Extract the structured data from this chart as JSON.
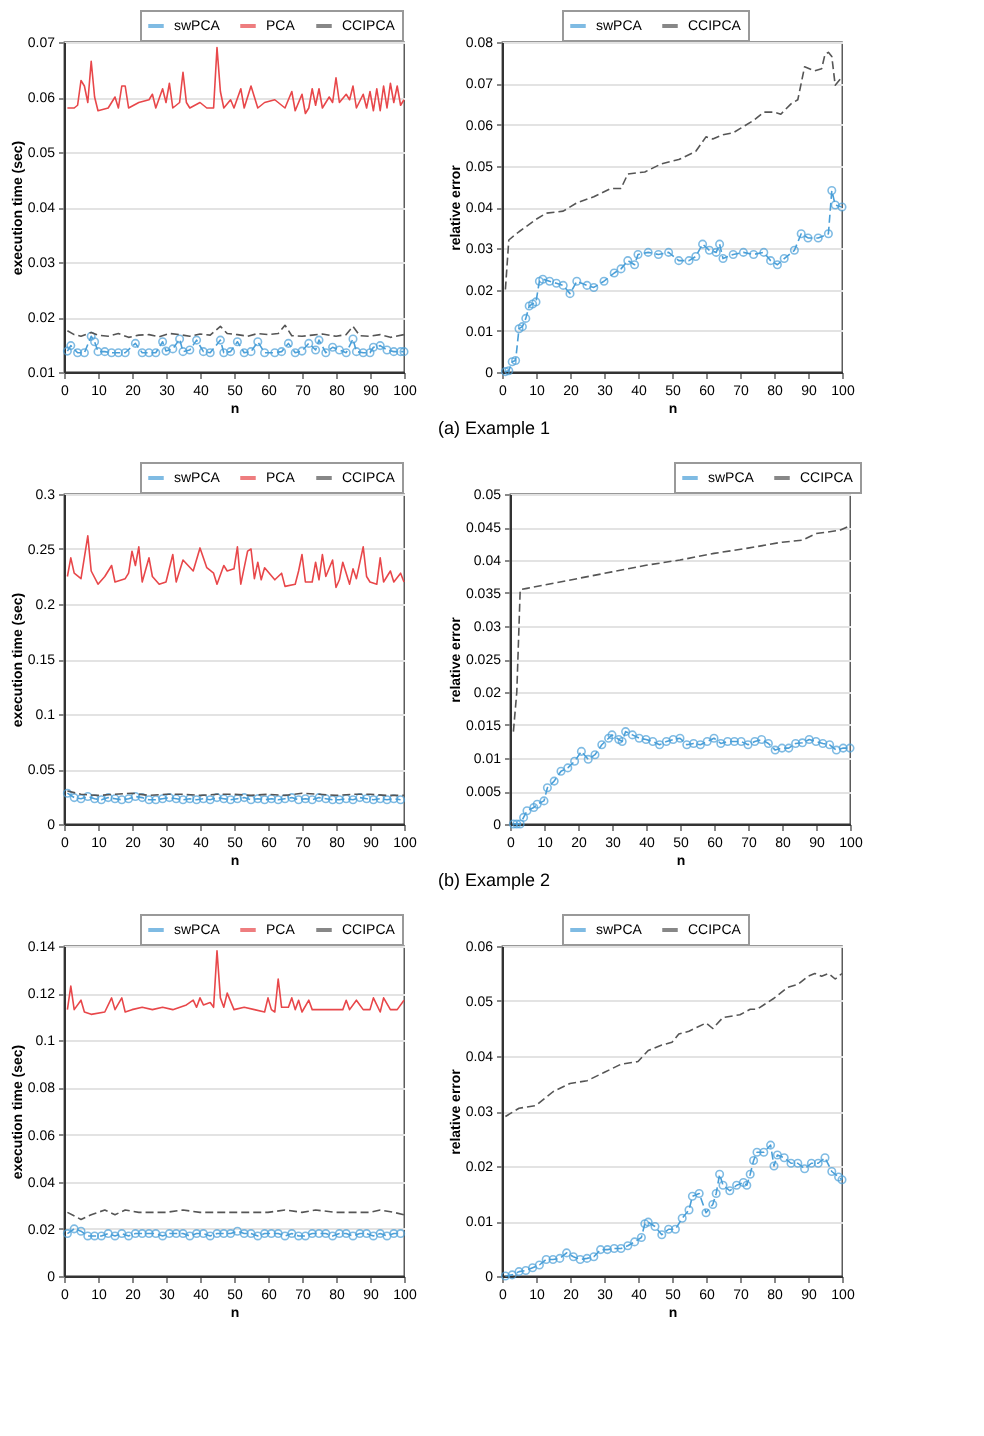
{
  "chart_data": [
    {
      "type": "line",
      "xlabel": "n",
      "ylabel": "execution time (sec)",
      "xlim": [
        0,
        100
      ],
      "xticks": [
        0,
        10,
        20,
        30,
        40,
        50,
        60,
        70,
        80,
        90,
        100
      ],
      "ylim": [
        0.01,
        0.07
      ],
      "yticks": [
        0.01,
        0.02,
        0.03,
        0.04,
        0.05,
        0.06,
        0.07
      ],
      "grid": "y",
      "legend": "top right",
      "annotations": [
        "(a) Example 1"
      ],
      "series": [
        {
          "name": "swPCA",
          "color": "#4a9fd8",
          "marker": "circle",
          "line_style": "dashed",
          "x": [
            1,
            2,
            4,
            6,
            8,
            9,
            10,
            12,
            14,
            16,
            18,
            21,
            23,
            25,
            27,
            29,
            30,
            32,
            34,
            35,
            37,
            39,
            41,
            43,
            46,
            47,
            49,
            51,
            53,
            55,
            57,
            59,
            62,
            64,
            66,
            68,
            70,
            72,
            74,
            75,
            77,
            79,
            81,
            83,
            85,
            86,
            88,
            90,
            91,
            93,
            95,
            97,
            99,
            100
          ],
          "values": [
            0.0138,
            0.0148,
            0.0135,
            0.0135,
            0.0165,
            0.0155,
            0.0137,
            0.0137,
            0.0135,
            0.0135,
            0.0135,
            0.0152,
            0.0135,
            0.0135,
            0.0135,
            0.0155,
            0.0138,
            0.0142,
            0.016,
            0.0137,
            0.014,
            0.0158,
            0.0137,
            0.0135,
            0.0158,
            0.0135,
            0.0137,
            0.0155,
            0.0135,
            0.0137,
            0.0155,
            0.0135,
            0.0135,
            0.0137,
            0.0152,
            0.0135,
            0.0138,
            0.0152,
            0.014,
            0.0158,
            0.0135,
            0.0145,
            0.014,
            0.0135,
            0.016,
            0.0137,
            0.0135,
            0.0135,
            0.0145,
            0.0148,
            0.014,
            0.0137,
            0.0137,
            0.0137
          ]
        },
        {
          "name": "PCA",
          "color": "#e8474a",
          "marker": "none",
          "line_style": "solid",
          "x": [
            1,
            3,
            4,
            5,
            6,
            7,
            8,
            9,
            10,
            13,
            15,
            16,
            17,
            18,
            19,
            22,
            25,
            26,
            27,
            29,
            30,
            31,
            32,
            34,
            35,
            36,
            37,
            40,
            42,
            44,
            45,
            46,
            47,
            49,
            50,
            52,
            53,
            55,
            56,
            57,
            59,
            62,
            65,
            67,
            68,
            70,
            71,
            72,
            73,
            74,
            75,
            76,
            78,
            79,
            80,
            81,
            83,
            84,
            85,
            86,
            88,
            89,
            90,
            91,
            92,
            93,
            94,
            95,
            96,
            97,
            98,
            99,
            100
          ],
          "values": [
            0.058,
            0.058,
            0.0585,
            0.063,
            0.062,
            0.059,
            0.0665,
            0.06,
            0.0575,
            0.058,
            0.06,
            0.058,
            0.062,
            0.062,
            0.058,
            0.059,
            0.0595,
            0.0605,
            0.058,
            0.0615,
            0.059,
            0.0625,
            0.058,
            0.059,
            0.0645,
            0.059,
            0.058,
            0.059,
            0.058,
            0.058,
            0.069,
            0.061,
            0.058,
            0.0595,
            0.058,
            0.0615,
            0.058,
            0.062,
            0.06,
            0.058,
            0.059,
            0.0595,
            0.058,
            0.061,
            0.0575,
            0.0605,
            0.057,
            0.058,
            0.0615,
            0.0585,
            0.0615,
            0.058,
            0.06,
            0.059,
            0.0635,
            0.059,
            0.0605,
            0.0595,
            0.062,
            0.058,
            0.0605,
            0.058,
            0.061,
            0.0575,
            0.0615,
            0.0575,
            0.062,
            0.058,
            0.0625,
            0.059,
            0.062,
            0.0585,
            0.0595
          ]
        },
        {
          "name": "CCIPCA",
          "color": "#555555",
          "marker": "none",
          "line_style": "dashed",
          "x": [
            1,
            3,
            5,
            8,
            10,
            13,
            16,
            19,
            22,
            25,
            28,
            31,
            34,
            37,
            40,
            43,
            46,
            48,
            51,
            54,
            57,
            60,
            63,
            65,
            67,
            70,
            73,
            76,
            80,
            83,
            85,
            87,
            90,
            93,
            96,
            100
          ],
          "values": [
            0.0175,
            0.0168,
            0.0165,
            0.0172,
            0.0167,
            0.0165,
            0.017,
            0.0163,
            0.0167,
            0.0168,
            0.0164,
            0.017,
            0.0168,
            0.0165,
            0.0169,
            0.0167,
            0.0183,
            0.017,
            0.0168,
            0.0165,
            0.017,
            0.0168,
            0.017,
            0.0185,
            0.0166,
            0.0165,
            0.0167,
            0.0169,
            0.0165,
            0.0168,
            0.0183,
            0.0166,
            0.0165,
            0.0168,
            0.0163,
            0.0168
          ]
        }
      ]
    },
    {
      "type": "line",
      "xlabel": "n",
      "ylabel": "relative error",
      "xlim": [
        0,
        100
      ],
      "xticks": [
        0,
        10,
        20,
        30,
        40,
        50,
        60,
        70,
        80,
        90,
        100
      ],
      "ylim": [
        0,
        0.08
      ],
      "yticks": [
        0,
        0.01,
        0.02,
        0.03,
        0.04,
        0.05,
        0.06,
        0.07,
        0.08
      ],
      "grid": "y",
      "legend": "top left",
      "series": [
        {
          "name": "swPCA",
          "color": "#4a9fd8",
          "marker": "circle",
          "line_style": "dashed",
          "x": [
            1,
            2,
            3,
            4,
            5,
            6,
            7,
            8,
            9,
            10,
            11,
            12,
            14,
            16,
            18,
            20,
            22,
            25,
            27,
            30,
            33,
            35,
            37,
            39,
            40,
            43,
            46,
            49,
            52,
            55,
            57,
            59,
            61,
            63,
            64,
            65,
            68,
            71,
            74,
            77,
            79,
            81,
            83,
            86,
            88,
            90,
            93,
            96,
            97,
            98,
            100
          ],
          "values": [
            0.0001,
            0.0003,
            0.0025,
            0.0028,
            0.0105,
            0.011,
            0.013,
            0.016,
            0.0165,
            0.017,
            0.022,
            0.0225,
            0.022,
            0.0215,
            0.021,
            0.019,
            0.022,
            0.021,
            0.0205,
            0.022,
            0.024,
            0.025,
            0.027,
            0.026,
            0.0285,
            0.029,
            0.0285,
            0.029,
            0.027,
            0.027,
            0.028,
            0.031,
            0.0295,
            0.029,
            0.031,
            0.0275,
            0.0285,
            0.029,
            0.0285,
            0.029,
            0.027,
            0.026,
            0.0275,
            0.0295,
            0.0335,
            0.0325,
            0.0325,
            0.0335,
            0.044,
            0.0405,
            0.04
          ]
        },
        {
          "name": "CCIPCA",
          "color": "#555555",
          "marker": "none",
          "line_style": "dashed",
          "x": [
            1,
            2,
            5,
            10,
            13,
            18,
            22,
            27,
            32,
            35,
            37,
            42,
            47,
            52,
            57,
            60,
            62,
            65,
            68,
            70,
            74,
            77,
            80,
            82,
            85,
            87,
            89,
            92,
            94,
            95,
            96,
            97,
            98,
            100
          ],
          "values": [
            0.02,
            0.032,
            0.034,
            0.037,
            0.0385,
            0.039,
            0.041,
            0.0425,
            0.0445,
            0.0445,
            0.048,
            0.0485,
            0.0505,
            0.0515,
            0.0535,
            0.057,
            0.0565,
            0.0575,
            0.058,
            0.059,
            0.061,
            0.063,
            0.063,
            0.0625,
            0.065,
            0.066,
            0.074,
            0.073,
            0.0735,
            0.077,
            0.0775,
            0.0765,
            0.0695,
            0.0715
          ]
        }
      ]
    },
    {
      "type": "line",
      "xlabel": "n",
      "ylabel": "execution time (sec)",
      "xlim": [
        0,
        100
      ],
      "xticks": [
        0,
        10,
        20,
        30,
        40,
        50,
        60,
        70,
        80,
        90,
        100
      ],
      "ylim": [
        0,
        0.3
      ],
      "yticks": [
        0,
        0.05,
        0.1,
        0.15,
        0.2,
        0.25,
        0.3
      ],
      "grid": "y",
      "legend": "top right",
      "annotations": [
        "(b) Example 2"
      ],
      "series": [
        {
          "name": "swPCA",
          "color": "#4a9fd8",
          "marker": "circle",
          "line_style": "dashed",
          "x": [
            1,
            3,
            5,
            7,
            9,
            11,
            13,
            15,
            17,
            19,
            21,
            23,
            25,
            27,
            29,
            31,
            33,
            35,
            37,
            39,
            41,
            43,
            45,
            47,
            49,
            51,
            53,
            55,
            57,
            59,
            61,
            63,
            65,
            67,
            69,
            71,
            73,
            75,
            77,
            79,
            81,
            83,
            85,
            87,
            89,
            91,
            93,
            95,
            97,
            99
          ],
          "values": [
            0.028,
            0.024,
            0.023,
            0.025,
            0.023,
            0.022,
            0.024,
            0.023,
            0.022,
            0.023,
            0.025,
            0.024,
            0.022,
            0.022,
            0.023,
            0.024,
            0.023,
            0.022,
            0.023,
            0.022,
            0.023,
            0.022,
            0.024,
            0.023,
            0.022,
            0.023,
            0.024,
            0.022,
            0.023,
            0.022,
            0.023,
            0.022,
            0.023,
            0.024,
            0.022,
            0.023,
            0.022,
            0.024,
            0.023,
            0.022,
            0.022,
            0.023,
            0.022,
            0.024,
            0.023,
            0.022,
            0.023,
            0.022,
            0.023,
            0.022
          ]
        },
        {
          "name": "PCA",
          "color": "#e8474a",
          "marker": "none",
          "line_style": "solid",
          "x": [
            1,
            2,
            3,
            5,
            7,
            8,
            10,
            12,
            14,
            15,
            18,
            19,
            20,
            21,
            22,
            23,
            25,
            26,
            28,
            30,
            32,
            33,
            35,
            38,
            40,
            42,
            44,
            45,
            47,
            48,
            50,
            51,
            52,
            54,
            55,
            56,
            57,
            58,
            59,
            62,
            64,
            65,
            68,
            69,
            70,
            71,
            73,
            74,
            75,
            76,
            77,
            79,
            80,
            81,
            82,
            84,
            85,
            86,
            88,
            89,
            90,
            92,
            93,
            94,
            96,
            97,
            99,
            100
          ],
          "values": [
            0.225,
            0.242,
            0.228,
            0.223,
            0.262,
            0.23,
            0.218,
            0.225,
            0.235,
            0.22,
            0.223,
            0.228,
            0.248,
            0.235,
            0.252,
            0.22,
            0.242,
            0.225,
            0.218,
            0.22,
            0.245,
            0.22,
            0.24,
            0.23,
            0.251,
            0.233,
            0.228,
            0.218,
            0.235,
            0.23,
            0.232,
            0.252,
            0.218,
            0.248,
            0.25,
            0.223,
            0.238,
            0.222,
            0.233,
            0.222,
            0.228,
            0.216,
            0.218,
            0.23,
            0.245,
            0.22,
            0.22,
            0.238,
            0.222,
            0.245,
            0.225,
            0.24,
            0.215,
            0.222,
            0.238,
            0.218,
            0.232,
            0.223,
            0.252,
            0.225,
            0.22,
            0.218,
            0.242,
            0.22,
            0.23,
            0.22,
            0.228,
            0.22
          ]
        },
        {
          "name": "CCIPCA",
          "color": "#555555",
          "marker": "none",
          "line_style": "dashed",
          "x": [
            1,
            5,
            10,
            15,
            20,
            25,
            30,
            35,
            40,
            45,
            50,
            55,
            60,
            65,
            70,
            75,
            80,
            85,
            90,
            95,
            100
          ],
          "values": [
            0.03,
            0.027,
            0.026,
            0.027,
            0.028,
            0.026,
            0.027,
            0.027,
            0.026,
            0.027,
            0.027,
            0.026,
            0.027,
            0.026,
            0.028,
            0.027,
            0.026,
            0.027,
            0.027,
            0.026,
            0.026
          ]
        }
      ]
    },
    {
      "type": "line",
      "xlabel": "n",
      "ylabel": "relative error",
      "xlim": [
        0,
        100
      ],
      "xticks": [
        0,
        10,
        20,
        30,
        40,
        50,
        60,
        70,
        80,
        90,
        100
      ],
      "ylim": [
        0,
        0.05
      ],
      "yticks": [
        0,
        0.005,
        0.01,
        0.015,
        0.02,
        0.025,
        0.03,
        0.035,
        0.04,
        0.045,
        0.05
      ],
      "grid": "y",
      "legend": "top right",
      "series": [
        {
          "name": "swPCA",
          "color": "#4a9fd8",
          "marker": "circle",
          "line_style": "dashed",
          "x": [
            1,
            2,
            3,
            4,
            5,
            7,
            8,
            10,
            11,
            13,
            15,
            17,
            19,
            21,
            23,
            25,
            27,
            29,
            30,
            32,
            33,
            34,
            36,
            38,
            40,
            42,
            44,
            46,
            48,
            50,
            52,
            54,
            56,
            58,
            60,
            62,
            64,
            66,
            68,
            70,
            72,
            74,
            76,
            78,
            80,
            82,
            84,
            86,
            88,
            90,
            92,
            94,
            96,
            98,
            100
          ],
          "values": [
            0,
            0,
            0,
            0.001,
            0.002,
            0.0025,
            0.003,
            0.0035,
            0.0055,
            0.0065,
            0.008,
            0.0085,
            0.0095,
            0.011,
            0.0098,
            0.0105,
            0.012,
            0.013,
            0.0135,
            0.0128,
            0.0125,
            0.014,
            0.0135,
            0.013,
            0.0128,
            0.0125,
            0.012,
            0.0125,
            0.0128,
            0.013,
            0.012,
            0.0122,
            0.012,
            0.0125,
            0.013,
            0.0122,
            0.0125,
            0.0125,
            0.0125,
            0.012,
            0.0125,
            0.0128,
            0.0122,
            0.0112,
            0.0115,
            0.0115,
            0.0122,
            0.0123,
            0.0128,
            0.0125,
            0.0122,
            0.012,
            0.0112,
            0.0115,
            0.0115
          ]
        },
        {
          "name": "CCIPCA",
          "color": "#555555",
          "marker": "none",
          "line_style": "dashed",
          "x": [
            1,
            2,
            3,
            5,
            10,
            20,
            30,
            40,
            50,
            60,
            70,
            80,
            86,
            90,
            97,
            100
          ],
          "values": [
            0.014,
            0.02,
            0.0355,
            0.0357,
            0.0362,
            0.0372,
            0.0382,
            0.0392,
            0.04,
            0.041,
            0.0418,
            0.0427,
            0.043,
            0.044,
            0.0445,
            0.0452
          ]
        }
      ]
    },
    {
      "type": "line",
      "xlabel": "n",
      "ylabel": "execution time (sec)",
      "xlim": [
        0,
        100
      ],
      "xticks": [
        0,
        10,
        20,
        30,
        40,
        50,
        60,
        70,
        80,
        90,
        100
      ],
      "ylim": [
        0,
        0.14
      ],
      "yticks": [
        0,
        0.02,
        0.04,
        0.06,
        0.08,
        0.1,
        0.12,
        0.14
      ],
      "grid": "y",
      "legend": "top right",
      "series": [
        {
          "name": "swPCA",
          "color": "#4a9fd8",
          "marker": "circle",
          "line_style": "dashed",
          "x": [
            1,
            3,
            5,
            7,
            9,
            11,
            13,
            15,
            17,
            19,
            21,
            23,
            25,
            27,
            29,
            31,
            33,
            35,
            37,
            39,
            41,
            43,
            45,
            47,
            49,
            51,
            53,
            55,
            57,
            59,
            61,
            63,
            65,
            67,
            69,
            71,
            73,
            75,
            77,
            79,
            81,
            83,
            85,
            87,
            89,
            91,
            93,
            95,
            97,
            99
          ],
          "values": [
            0.018,
            0.02,
            0.019,
            0.017,
            0.017,
            0.017,
            0.018,
            0.017,
            0.018,
            0.017,
            0.018,
            0.018,
            0.018,
            0.018,
            0.017,
            0.018,
            0.018,
            0.018,
            0.017,
            0.018,
            0.018,
            0.017,
            0.018,
            0.018,
            0.018,
            0.019,
            0.018,
            0.018,
            0.017,
            0.018,
            0.018,
            0.018,
            0.017,
            0.018,
            0.017,
            0.017,
            0.018,
            0.018,
            0.018,
            0.017,
            0.018,
            0.018,
            0.017,
            0.018,
            0.018,
            0.017,
            0.018,
            0.017,
            0.018,
            0.018
          ]
        },
        {
          "name": "PCA",
          "color": "#e8474a",
          "marker": "none",
          "line_style": "solid",
          "x": [
            1,
            2,
            3,
            5,
            6,
            8,
            12,
            14,
            15,
            17,
            18,
            20,
            23,
            26,
            29,
            32,
            36,
            38,
            39,
            40,
            41,
            43,
            44,
            45,
            46,
            47,
            48,
            50,
            53,
            56,
            59,
            60,
            61,
            62,
            63,
            64,
            66,
            67,
            68,
            69,
            70,
            72,
            73,
            75,
            80,
            82,
            83,
            84,
            86,
            88,
            90,
            91,
            93,
            94,
            96,
            98,
            100
          ],
          "values": [
            0.113,
            0.123,
            0.113,
            0.117,
            0.112,
            0.111,
            0.112,
            0.118,
            0.113,
            0.118,
            0.112,
            0.113,
            0.114,
            0.113,
            0.114,
            0.113,
            0.115,
            0.117,
            0.114,
            0.118,
            0.115,
            0.116,
            0.114,
            0.138,
            0.118,
            0.114,
            0.12,
            0.113,
            0.114,
            0.113,
            0.112,
            0.118,
            0.113,
            0.112,
            0.126,
            0.114,
            0.114,
            0.118,
            0.113,
            0.117,
            0.112,
            0.117,
            0.113,
            0.113,
            0.113,
            0.113,
            0.117,
            0.113,
            0.117,
            0.113,
            0.113,
            0.118,
            0.112,
            0.118,
            0.113,
            0.113,
            0.117
          ]
        },
        {
          "name": "CCIPCA",
          "color": "#555555",
          "marker": "none",
          "line_style": "dashed",
          "x": [
            1,
            5,
            8,
            12,
            15,
            18,
            22,
            30,
            35,
            40,
            45,
            50,
            55,
            60,
            65,
            70,
            74,
            80,
            85,
            90,
            93,
            97,
            100
          ],
          "values": [
            0.027,
            0.024,
            0.026,
            0.028,
            0.026,
            0.028,
            0.027,
            0.027,
            0.028,
            0.027,
            0.027,
            0.027,
            0.027,
            0.027,
            0.028,
            0.027,
            0.028,
            0.027,
            0.027,
            0.027,
            0.028,
            0.027,
            0.026
          ]
        }
      ]
    },
    {
      "type": "line",
      "xlabel": "n",
      "ylabel": "relative error",
      "xlim": [
        0,
        100
      ],
      "xticks": [
        0,
        10,
        20,
        30,
        40,
        50,
        60,
        70,
        80,
        90,
        100
      ],
      "ylim": [
        0,
        0.06
      ],
      "yticks": [
        0,
        0.01,
        0.02,
        0.03,
        0.04,
        0.05,
        0.06
      ],
      "grid": "y",
      "legend": "top left",
      "series": [
        {
          "name": "swPCA",
          "color": "#4a9fd8",
          "marker": "circle",
          "line_style": "dashed",
          "x": [
            1,
            3,
            5,
            7,
            9,
            11,
            13,
            15,
            17,
            19,
            21,
            23,
            25,
            27,
            29,
            31,
            33,
            35,
            37,
            39,
            41,
            42,
            43,
            45,
            47,
            49,
            51,
            53,
            55,
            56,
            58,
            60,
            62,
            63,
            64,
            65,
            67,
            69,
            71,
            72,
            73,
            74,
            75,
            77,
            79,
            80,
            81,
            83,
            85,
            87,
            89,
            91,
            93,
            95,
            97,
            99,
            100
          ],
          "values": [
            0,
            0.0002,
            0.0008,
            0.001,
            0.0015,
            0.002,
            0.003,
            0.003,
            0.0032,
            0.0042,
            0.0035,
            0.003,
            0.0032,
            0.0035,
            0.0048,
            0.0048,
            0.005,
            0.005,
            0.0055,
            0.0062,
            0.007,
            0.0095,
            0.0098,
            0.009,
            0.0075,
            0.0085,
            0.0085,
            0.0105,
            0.012,
            0.0145,
            0.015,
            0.0115,
            0.013,
            0.015,
            0.0185,
            0.0165,
            0.0155,
            0.0165,
            0.017,
            0.0165,
            0.0185,
            0.021,
            0.0225,
            0.0225,
            0.0238,
            0.02,
            0.022,
            0.0215,
            0.0205,
            0.0205,
            0.0195,
            0.0205,
            0.0205,
            0.0215,
            0.019,
            0.018,
            0.0175
          ]
        },
        {
          "name": "CCIPCA",
          "color": "#555555",
          "marker": "none",
          "line_style": "dashed",
          "x": [
            1,
            5,
            10,
            15,
            20,
            25,
            30,
            35,
            40,
            43,
            47,
            50,
            52,
            55,
            60,
            62,
            65,
            70,
            73,
            75,
            80,
            84,
            87,
            90,
            92,
            94,
            96,
            98,
            100
          ],
          "values": [
            0.029,
            0.0305,
            0.031,
            0.0335,
            0.035,
            0.0355,
            0.037,
            0.0385,
            0.039,
            0.041,
            0.042,
            0.0425,
            0.044,
            0.0445,
            0.046,
            0.045,
            0.047,
            0.0475,
            0.0485,
            0.0485,
            0.0505,
            0.0525,
            0.053,
            0.0545,
            0.055,
            0.0545,
            0.055,
            0.054,
            0.055
          ]
        }
      ]
    }
  ]
}
